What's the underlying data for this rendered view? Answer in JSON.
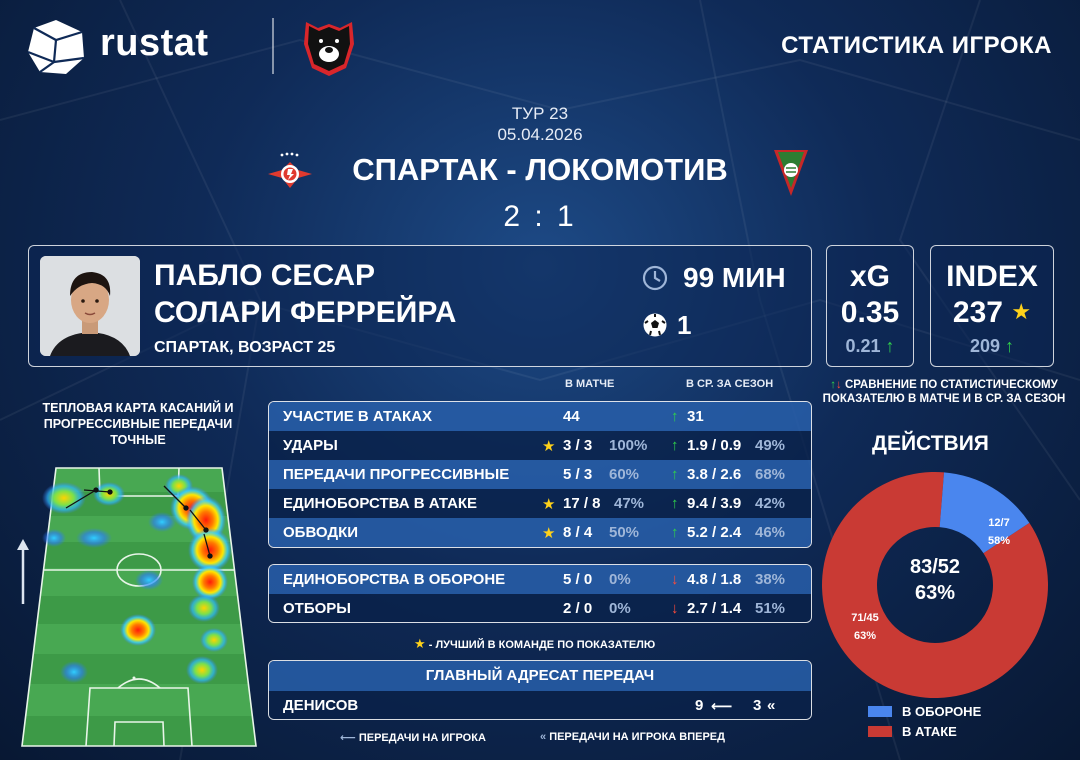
{
  "header": {
    "brand": "rustat",
    "title": "СТАТИСТИКА ИГРОКА"
  },
  "match": {
    "round": "ТУР 23",
    "date": "05.04.2026",
    "teams": "СПАРТАК - ЛОКОМОТИВ",
    "score": "2 : 1"
  },
  "player": {
    "name_line1": "ПАБЛО СЕСАР",
    "name_line2": "СОЛАРИ ФЕРРЕЙРА",
    "team_age": "СПАРТАК, ВОЗРАСТ 25",
    "minutes": "99 МИН",
    "goals": "1"
  },
  "kpis": {
    "xg": {
      "label": "xG",
      "value": "0.35",
      "avg": "0.21"
    },
    "index": {
      "label": "INDEX",
      "value": "237",
      "avg": "209"
    }
  },
  "compare_note": "СРАВНЕНИЕ ПО СТАТИСТИЧЕСКОМУ ПОКАЗАТЕЛЮ В МАТЧЕ И В СР. ЗА СЕЗОН",
  "heatmap_title": "ТЕПЛОВАЯ КАРТА КАСАНИЙ И ПРОГРЕССИВНЫЕ ПЕРЕДАЧИ ТОЧНЫЕ",
  "columns": {
    "match": "В МАТЧЕ",
    "season": "В СР. ЗА СЕЗОН"
  },
  "attack_stats": [
    {
      "label": "УЧАСТИЕ В АТАКАХ",
      "best": false,
      "match": "44",
      "match_pct": "",
      "trend": "up",
      "season": "31",
      "season_pct": ""
    },
    {
      "label": "УДАРЫ",
      "best": true,
      "match": "3 / 3",
      "match_pct": "100%",
      "trend": "up",
      "season": "1.9 / 0.9",
      "season_pct": "49%"
    },
    {
      "label": "ПЕРЕДАЧИ ПРОГРЕССИВНЫЕ",
      "best": false,
      "match": "5 / 3",
      "match_pct": "60%",
      "trend": "up",
      "season": "3.8 / 2.6",
      "season_pct": "68%"
    },
    {
      "label": "ЕДИНОБОРСТВА В АТАКЕ",
      "best": true,
      "match": "17 / 8",
      "match_pct": "47%",
      "trend": "up",
      "season": "9.4 / 3.9",
      "season_pct": "42%"
    },
    {
      "label": "ОБВОДКИ",
      "best": true,
      "match": "8 / 4",
      "match_pct": "50%",
      "trend": "up",
      "season": "5.2 / 2.4",
      "season_pct": "46%"
    }
  ],
  "defense_stats": [
    {
      "label": "ЕДИНОБОРСТВА В ОБОРОНЕ",
      "best": false,
      "match": "5 / 0",
      "match_pct": "0%",
      "trend": "down",
      "season": "4.8 / 1.8",
      "season_pct": "38%"
    },
    {
      "label": "ОТБОРЫ",
      "best": false,
      "match": "2 / 0",
      "match_pct": "0%",
      "trend": "down",
      "season": "2.7 / 1.4",
      "season_pct": "51%"
    }
  ],
  "best_note": "- ЛУЧШИЙ В КОМАНДЕ ПО ПОКАЗАТЕЛЮ",
  "pass_target": {
    "title": "ГЛАВНЫЙ АДРЕСАТ ПЕРЕДАЧ",
    "name": "ДЕНИСОВ",
    "passes_to": "9",
    "passes_forward": "3"
  },
  "legend": {
    "passes_to": "ПЕРЕДАЧИ НА ИГРОКА",
    "passes_forward": "ПЕРЕДАЧИ НА ИГРОКА ВПЕРЕД"
  },
  "actions": {
    "title": "ДЕЙСТВИЯ",
    "total": "83/52",
    "total_pct": "63%",
    "defense": {
      "label": "В ОБОРОНЕ",
      "value": "12/7",
      "pct": "58%",
      "share": 0.1446,
      "color": "#4a86ee"
    },
    "attack": {
      "label": "В АТАКЕ",
      "value": "71/45",
      "pct": "63%",
      "share": 0.8554,
      "color": "#c93a34"
    }
  },
  "colors": {
    "up": "#2fd04c",
    "down": "#ff4b3a",
    "star": "#ffd21a",
    "panel_light": "#285faa",
    "panel_dark": "#0a224a"
  }
}
